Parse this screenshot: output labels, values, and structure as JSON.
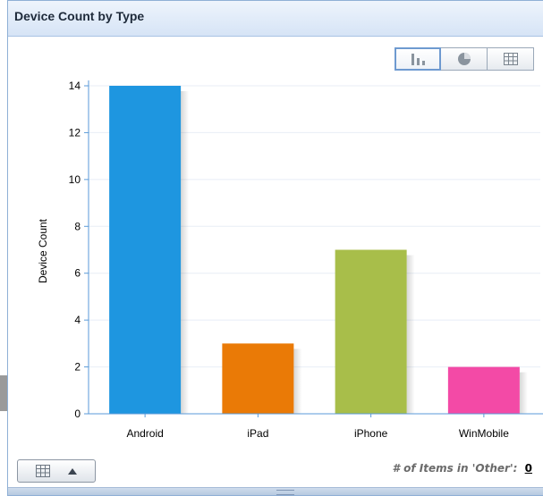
{
  "panel": {
    "title": "Device Count by Type"
  },
  "view_switch": [
    {
      "icon": "bar-chart-icon",
      "active": true
    },
    {
      "icon": "pie-chart-icon",
      "active": false
    },
    {
      "icon": "table-grid-icon",
      "active": false
    }
  ],
  "footer": {
    "other_label": "# of Items in 'Other':",
    "other_count": "0",
    "table_toggle_icon": "table-grid-icon",
    "expand_icon": "triangle-up-icon"
  },
  "chart_data": {
    "type": "bar",
    "title": "",
    "xlabel": "",
    "ylabel": "Device Count",
    "categories": [
      "Android",
      "iPad",
      "iPhone",
      "WinMobile"
    ],
    "values": [
      14,
      3,
      7,
      2
    ],
    "colors": [
      "#1e96e0",
      "#ea7a06",
      "#a8be4a",
      "#f34aa6"
    ],
    "ylim": [
      0,
      14
    ],
    "yticks": [
      0,
      2,
      4,
      6,
      8,
      10,
      12,
      14
    ],
    "grid": true,
    "legend": "none"
  }
}
